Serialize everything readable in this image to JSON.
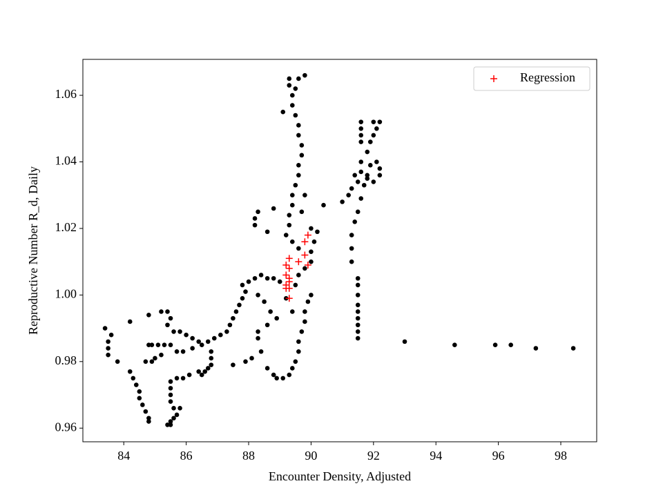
{
  "chart_data": {
    "type": "scatter",
    "xlabel": "Encounter Density, Adjusted",
    "ylabel": "Reproductive Number R_d, Daily",
    "xlim": [
      82.69,
      99.15
    ],
    "xticks": [
      84,
      86,
      88,
      90,
      92,
      94,
      96,
      98
    ],
    "ylim": [
      0.9559,
      1.0708
    ],
    "yticks": [
      0.96,
      0.98,
      {
        "value": 1,
        "label": "1.00"
      },
      1.02,
      1.04,
      1.06
    ],
    "grid": false,
    "legend": "upper right",
    "series": [
      {
        "color": "#000000",
        "marker": "dot",
        "x": [
          83.4,
          83.5,
          83.5,
          83.5,
          83.6,
          83.8,
          84.2,
          84.2,
          84.3,
          84.4,
          84.5,
          84.5,
          84.6,
          84.7,
          84.8,
          84.8,
          84.7,
          84.8,
          84.9,
          85.1,
          85.3,
          84.8,
          85.2,
          85.4,
          85.5,
          85.4,
          85.6,
          85.8,
          86.0,
          86.2,
          86.4,
          86.2,
          85.9,
          85.2,
          85.0,
          84.9,
          85.5,
          85.7,
          85.5,
          85.5,
          85.5,
          85.5,
          85.6,
          85.8,
          85.7,
          85.6,
          85.5,
          85.4,
          85.5,
          85.7,
          85.9,
          86.1,
          86.4,
          86.5,
          86.6,
          86.7,
          86.8,
          86.8,
          86.8,
          86.5,
          86.7,
          86.9,
          87.1,
          87.3,
          87.4,
          87.5,
          87.6,
          87.7,
          87.8,
          87.9,
          87.8,
          88.0,
          88.2,
          88.4,
          88.6,
          88.8,
          89.0,
          88.3,
          88.5,
          88.7,
          88.9,
          88.6,
          88.3,
          88.3,
          88.4,
          88.1,
          87.9,
          87.5,
          88.6,
          88.8,
          88.9,
          89.1,
          89.3,
          89.4,
          89.5,
          89.6,
          89.6,
          89.7,
          89.8,
          89.8,
          89.9,
          90.0,
          89.4,
          89.2,
          89.5,
          89.6,
          89.8,
          90.0,
          90.0,
          90.1,
          90.2,
          90.0,
          89.6,
          89.4,
          89.2,
          89.3,
          89.3,
          89.4,
          89.4,
          89.5,
          89.6,
          89.6,
          89.7,
          89.7,
          89.6,
          89.6,
          89.5,
          89.4,
          89.4,
          89.3,
          89.3,
          89.6,
          89.8,
          89.1,
          89.5,
          89.7,
          89.8,
          90.4,
          88.8,
          88.3,
          88.2,
          88.2,
          88.6,
          91.5,
          91.5,
          91.5,
          91.5,
          91.5,
          91.5,
          91.5,
          91.5,
          91.5,
          91.3,
          91.3,
          91.3,
          91.4,
          91.5,
          91.6,
          91.7,
          91.8,
          91.9,
          92.1,
          92.2,
          92.2,
          92.0,
          91.8,
          91.6,
          91.5,
          91.3,
          91.2,
          91.0,
          91.4,
          91.6,
          91.8,
          91.9,
          92.0,
          92.1,
          92.2,
          92.0,
          91.6,
          91.6,
          91.6,
          91.6,
          93.0,
          94.6,
          95.9,
          96.4,
          97.2,
          98.4
        ],
        "values": [
          0.99,
          0.986,
          0.984,
          0.982,
          0.988,
          0.98,
          0.992,
          0.977,
          0.975,
          0.973,
          0.971,
          0.969,
          0.967,
          0.965,
          0.963,
          0.962,
          0.98,
          0.985,
          0.985,
          0.985,
          0.985,
          0.994,
          0.995,
          0.995,
          0.993,
          0.991,
          0.989,
          0.989,
          0.988,
          0.987,
          0.986,
          0.984,
          0.983,
          0.982,
          0.981,
          0.98,
          0.985,
          0.983,
          0.974,
          0.972,
          0.97,
          0.968,
          0.966,
          0.966,
          0.964,
          0.963,
          0.962,
          0.961,
          0.961,
          0.975,
          0.975,
          0.976,
          0.977,
          0.976,
          0.977,
          0.978,
          0.979,
          0.981,
          0.983,
          0.985,
          0.986,
          0.987,
          0.988,
          0.989,
          0.991,
          0.993,
          0.995,
          0.997,
          0.999,
          1.001,
          1.003,
          1.004,
          1.005,
          1.006,
          1.005,
          1.005,
          1.004,
          1.0,
          0.998,
          0.995,
          0.993,
          0.991,
          0.989,
          0.987,
          0.983,
          0.981,
          0.98,
          0.979,
          0.978,
          0.976,
          0.975,
          0.975,
          0.976,
          0.978,
          0.98,
          0.983,
          0.986,
          0.989,
          0.992,
          0.995,
          0.998,
          1.0,
          0.995,
          0.999,
          1.003,
          1.006,
          1.008,
          1.01,
          1.013,
          1.016,
          1.019,
          1.02,
          1.014,
          1.016,
          1.018,
          1.021,
          1.024,
          1.027,
          1.03,
          1.033,
          1.036,
          1.039,
          1.042,
          1.045,
          1.048,
          1.051,
          1.054,
          1.057,
          1.06,
          1.063,
          1.065,
          1.065,
          1.066,
          1.055,
          1.062,
          1.025,
          1.03,
          1.027,
          1.026,
          1.025,
          1.023,
          1.021,
          1.019,
          0.987,
          0.989,
          0.991,
          0.993,
          0.995,
          0.997,
          1.0,
          1.003,
          1.005,
          1.01,
          1.014,
          1.018,
          1.022,
          1.025,
          1.029,
          1.033,
          1.036,
          1.039,
          1.04,
          1.038,
          1.036,
          1.034,
          1.035,
          1.037,
          1.034,
          1.032,
          1.03,
          1.028,
          1.036,
          1.04,
          1.043,
          1.046,
          1.048,
          1.05,
          1.052,
          1.052,
          1.052,
          1.05,
          1.048,
          1.046,
          0.986,
          0.985,
          0.985,
          0.985,
          0.984,
          0.984
        ]
      },
      {
        "name": "Regression",
        "color": "#ff0000",
        "marker": "plus",
        "x": [
          89.3,
          89.3,
          89.2,
          89.3,
          89.2,
          89.3,
          89.2,
          89.3,
          89.6,
          89.9,
          89.8,
          89.9,
          89.8,
          89.2,
          89.3
        ],
        "values": [
          1.011,
          1.008,
          1.006,
          1.004,
          1.003,
          1.002,
          1.002,
          0.999,
          1.01,
          1.009,
          1.012,
          1.018,
          1.016,
          1.009,
          1.005
        ]
      }
    ]
  }
}
